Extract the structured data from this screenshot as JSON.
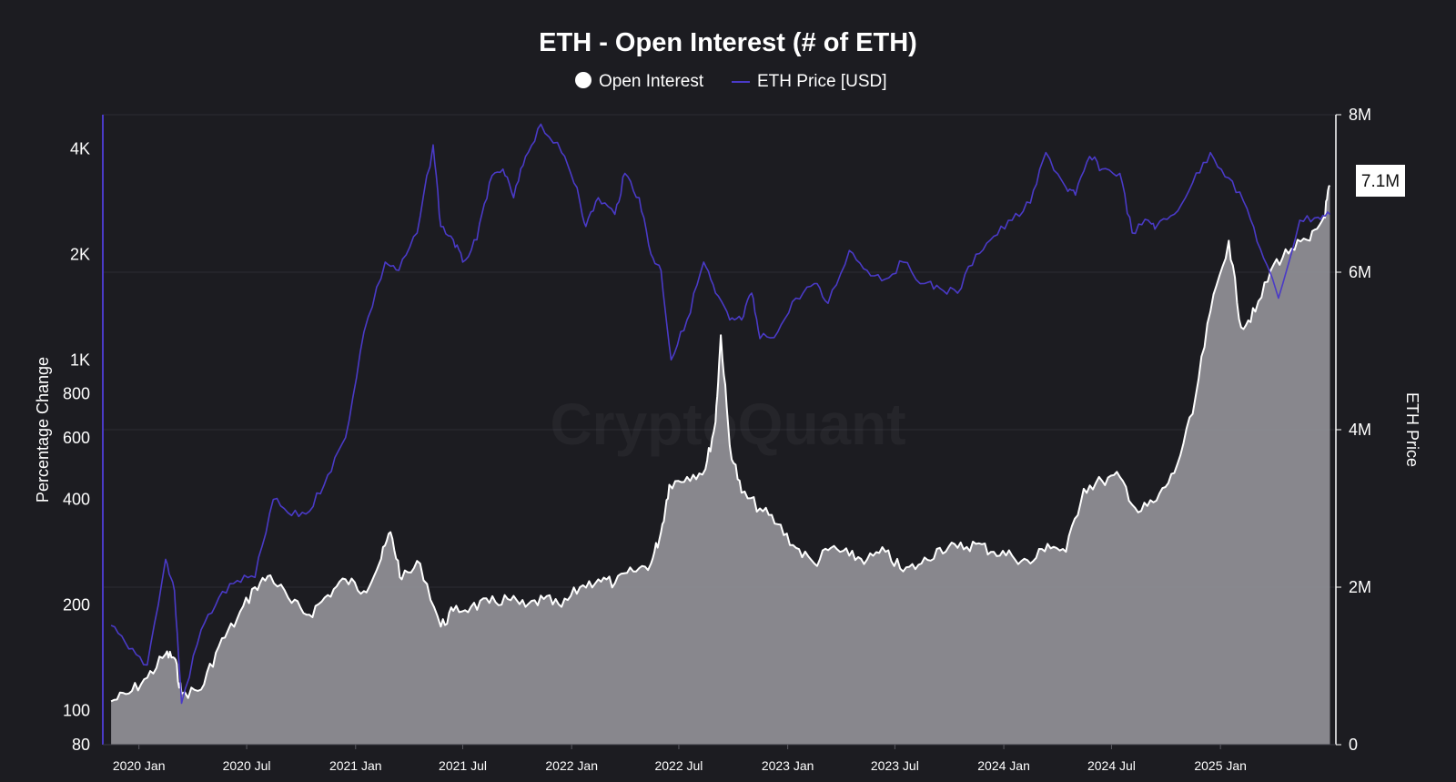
{
  "chart_data": {
    "type": "area",
    "title": "ETH - Open Interest (# of ETH)",
    "watermark": "CryptoQuant",
    "legend": {
      "placement": "top-center",
      "items": [
        {
          "label": "Open Interest",
          "marker": "circle",
          "color": "#ffffff"
        },
        {
          "label": "ETH Price [USD]",
          "marker": "line",
          "color": "#4a3ac7"
        }
      ]
    },
    "x_axis": {
      "type": "date",
      "range": [
        "2019-11-01",
        "2025-07-15"
      ],
      "ticks": [
        {
          "label": "2020 Jan",
          "date": "2020-01-01"
        },
        {
          "label": "2020 Jul",
          "date": "2020-07-01"
        },
        {
          "label": "2021 Jan",
          "date": "2021-01-01"
        },
        {
          "label": "2021 Jul",
          "date": "2021-07-01"
        },
        {
          "label": "2022 Jan",
          "date": "2022-01-01"
        },
        {
          "label": "2022 Jul",
          "date": "2022-07-01"
        },
        {
          "label": "2023 Jan",
          "date": "2023-01-01"
        },
        {
          "label": "2023 Jul",
          "date": "2023-07-01"
        },
        {
          "label": "2024 Jan",
          "date": "2024-01-01"
        },
        {
          "label": "2024 Jul",
          "date": "2024-07-01"
        },
        {
          "label": "2025 Jan",
          "date": "2025-01-01"
        }
      ]
    },
    "y_left": {
      "label": "Percentage Change",
      "scale": "log",
      "range": [
        80,
        5000
      ],
      "ticks": [
        {
          "label": "4K",
          "value": 4000
        },
        {
          "label": "2K",
          "value": 2000
        },
        {
          "label": "1K",
          "value": 1000
        },
        {
          "label": "800",
          "value": 800
        },
        {
          "label": "600",
          "value": 600
        },
        {
          "label": "400",
          "value": 400
        },
        {
          "label": "200",
          "value": 200
        },
        {
          "label": "100",
          "value": 100
        },
        {
          "label": "80",
          "value": 80
        }
      ]
    },
    "y_right": {
      "label": "ETH Price",
      "scale": "linear",
      "range": [
        0,
        8000000
      ],
      "ticks": [
        {
          "label": "8M",
          "value": 8000000
        },
        {
          "label": "6M",
          "value": 6000000
        },
        {
          "label": "4M",
          "value": 4000000
        },
        {
          "label": "2M",
          "value": 2000000
        },
        {
          "label": "0",
          "value": 0
        }
      ]
    },
    "grid": true,
    "current_value_label": "7.1M",
    "series": [
      {
        "name": "Open Interest",
        "axis": "right",
        "type": "area",
        "color": "#ffffff",
        "fill": "#8e8d93",
        "points": [
          [
            "2019-11-15",
            550000
          ],
          [
            "2019-12-15",
            650000
          ],
          [
            "2020-01-15",
            850000
          ],
          [
            "2020-02-15",
            1150000
          ],
          [
            "2020-03-01",
            1100000
          ],
          [
            "2020-03-13",
            650000
          ],
          [
            "2020-04-15",
            700000
          ],
          [
            "2020-05-15",
            1250000
          ],
          [
            "2020-06-15",
            1600000
          ],
          [
            "2020-07-15",
            2000000
          ],
          [
            "2020-08-10",
            2150000
          ],
          [
            "2020-09-15",
            1800000
          ],
          [
            "2020-10-15",
            1650000
          ],
          [
            "2020-11-15",
            1900000
          ],
          [
            "2020-12-15",
            2100000
          ],
          [
            "2021-01-15",
            1950000
          ],
          [
            "2021-02-10",
            2300000
          ],
          [
            "2021-03-01",
            2700000
          ],
          [
            "2021-03-20",
            2100000
          ],
          [
            "2021-04-20",
            2300000
          ],
          [
            "2021-05-25",
            1500000
          ],
          [
            "2021-06-15",
            1700000
          ],
          [
            "2021-07-15",
            1750000
          ],
          [
            "2021-08-15",
            1800000
          ],
          [
            "2021-09-15",
            1850000
          ],
          [
            "2021-10-15",
            1750000
          ],
          [
            "2021-11-15",
            1850000
          ],
          [
            "2021-12-15",
            1750000
          ],
          [
            "2022-01-15",
            2000000
          ],
          [
            "2022-02-15",
            2100000
          ],
          [
            "2022-03-15",
            2050000
          ],
          [
            "2022-04-15",
            2200000
          ],
          [
            "2022-05-15",
            2300000
          ],
          [
            "2022-06-01",
            2700000
          ],
          [
            "2022-06-15",
            3300000
          ],
          [
            "2022-07-15",
            3400000
          ],
          [
            "2022-08-15",
            3500000
          ],
          [
            "2022-09-01",
            4100000
          ],
          [
            "2022-09-10",
            5200000
          ],
          [
            "2022-09-25",
            3800000
          ],
          [
            "2022-10-15",
            3200000
          ],
          [
            "2022-11-15",
            3000000
          ],
          [
            "2022-12-15",
            2800000
          ],
          [
            "2023-01-15",
            2500000
          ],
          [
            "2023-02-15",
            2300000
          ],
          [
            "2023-03-15",
            2500000
          ],
          [
            "2023-04-15",
            2400000
          ],
          [
            "2023-05-15",
            2350000
          ],
          [
            "2023-06-15",
            2450000
          ],
          [
            "2023-07-15",
            2200000
          ],
          [
            "2023-08-15",
            2300000
          ],
          [
            "2023-09-15",
            2500000
          ],
          [
            "2023-10-15",
            2500000
          ],
          [
            "2023-11-15",
            2550000
          ],
          [
            "2023-12-15",
            2450000
          ],
          [
            "2024-01-15",
            2400000
          ],
          [
            "2024-02-15",
            2300000
          ],
          [
            "2024-03-15",
            2550000
          ],
          [
            "2024-04-15",
            2450000
          ],
          [
            "2024-05-15",
            3250000
          ],
          [
            "2024-06-15",
            3350000
          ],
          [
            "2024-07-15",
            3400000
          ],
          [
            "2024-08-15",
            2950000
          ],
          [
            "2024-09-15",
            3100000
          ],
          [
            "2024-10-15",
            3450000
          ],
          [
            "2024-11-15",
            4200000
          ],
          [
            "2024-12-15",
            5500000
          ],
          [
            "2025-01-15",
            6400000
          ],
          [
            "2025-02-05",
            5300000
          ],
          [
            "2025-03-01",
            5500000
          ],
          [
            "2025-04-01",
            6100000
          ],
          [
            "2025-05-01",
            6300000
          ],
          [
            "2025-06-01",
            6400000
          ],
          [
            "2025-06-25",
            6700000
          ],
          [
            "2025-07-05",
            7100000
          ]
        ]
      },
      {
        "name": "ETH Price [USD]",
        "axis": "left",
        "type": "line",
        "color": "#4a3ac7",
        "points": [
          [
            "2019-11-15",
            175
          ],
          [
            "2019-12-15",
            150
          ],
          [
            "2020-01-15",
            135
          ],
          [
            "2020-02-15",
            270
          ],
          [
            "2020-03-01",
            220
          ],
          [
            "2020-03-13",
            105
          ],
          [
            "2020-04-15",
            170
          ],
          [
            "2020-05-15",
            210
          ],
          [
            "2020-06-15",
            235
          ],
          [
            "2020-07-15",
            240
          ],
          [
            "2020-08-15",
            400
          ],
          [
            "2020-09-15",
            360
          ],
          [
            "2020-10-15",
            370
          ],
          [
            "2020-11-15",
            470
          ],
          [
            "2020-12-15",
            600
          ],
          [
            "2021-01-15",
            1200
          ],
          [
            "2021-02-20",
            1900
          ],
          [
            "2021-03-15",
            1800
          ],
          [
            "2021-04-15",
            2300
          ],
          [
            "2021-05-12",
            4100
          ],
          [
            "2021-05-25",
            2400
          ],
          [
            "2021-06-15",
            2200
          ],
          [
            "2021-07-01",
            1900
          ],
          [
            "2021-07-25",
            2200
          ],
          [
            "2021-08-15",
            3200
          ],
          [
            "2021-09-07",
            3500
          ],
          [
            "2021-09-25",
            2900
          ],
          [
            "2021-10-15",
            3800
          ],
          [
            "2021-11-10",
            4700
          ],
          [
            "2021-12-15",
            3900
          ],
          [
            "2022-01-10",
            3100
          ],
          [
            "2022-01-25",
            2400
          ],
          [
            "2022-02-15",
            2900
          ],
          [
            "2022-03-15",
            2600
          ],
          [
            "2022-04-01",
            3400
          ],
          [
            "2022-04-25",
            2900
          ],
          [
            "2022-05-15",
            2000
          ],
          [
            "2022-06-01",
            1800
          ],
          [
            "2022-06-18",
            1000
          ],
          [
            "2022-07-15",
            1300
          ],
          [
            "2022-08-12",
            1900
          ],
          [
            "2022-09-01",
            1550
          ],
          [
            "2022-09-25",
            1300
          ],
          [
            "2022-10-15",
            1300
          ],
          [
            "2022-11-01",
            1550
          ],
          [
            "2022-11-15",
            1150
          ],
          [
            "2022-12-15",
            1200
          ],
          [
            "2023-01-15",
            1500
          ],
          [
            "2023-02-15",
            1650
          ],
          [
            "2023-03-10",
            1450
          ],
          [
            "2023-04-15",
            2050
          ],
          [
            "2023-05-15",
            1800
          ],
          [
            "2023-06-15",
            1700
          ],
          [
            "2023-07-15",
            1900
          ],
          [
            "2023-08-20",
            1650
          ],
          [
            "2023-09-15",
            1600
          ],
          [
            "2023-10-15",
            1550
          ],
          [
            "2023-11-15",
            2000
          ],
          [
            "2023-12-15",
            2250
          ],
          [
            "2024-01-15",
            2500
          ],
          [
            "2024-02-15",
            2800
          ],
          [
            "2024-03-12",
            3900
          ],
          [
            "2024-04-15",
            3100
          ],
          [
            "2024-05-01",
            2950
          ],
          [
            "2024-05-25",
            3800
          ],
          [
            "2024-06-15",
            3500
          ],
          [
            "2024-07-15",
            3400
          ],
          [
            "2024-08-05",
            2300
          ],
          [
            "2024-09-01",
            2500
          ],
          [
            "2024-09-15",
            2400
          ],
          [
            "2024-10-15",
            2600
          ],
          [
            "2024-11-15",
            3200
          ],
          [
            "2024-12-15",
            3900
          ],
          [
            "2025-01-15",
            3300
          ],
          [
            "2025-02-15",
            2700
          ],
          [
            "2025-03-15",
            1950
          ],
          [
            "2025-04-09",
            1500
          ],
          [
            "2025-05-15",
            2500
          ],
          [
            "2025-06-15",
            2550
          ],
          [
            "2025-07-05",
            2600
          ]
        ]
      }
    ]
  }
}
